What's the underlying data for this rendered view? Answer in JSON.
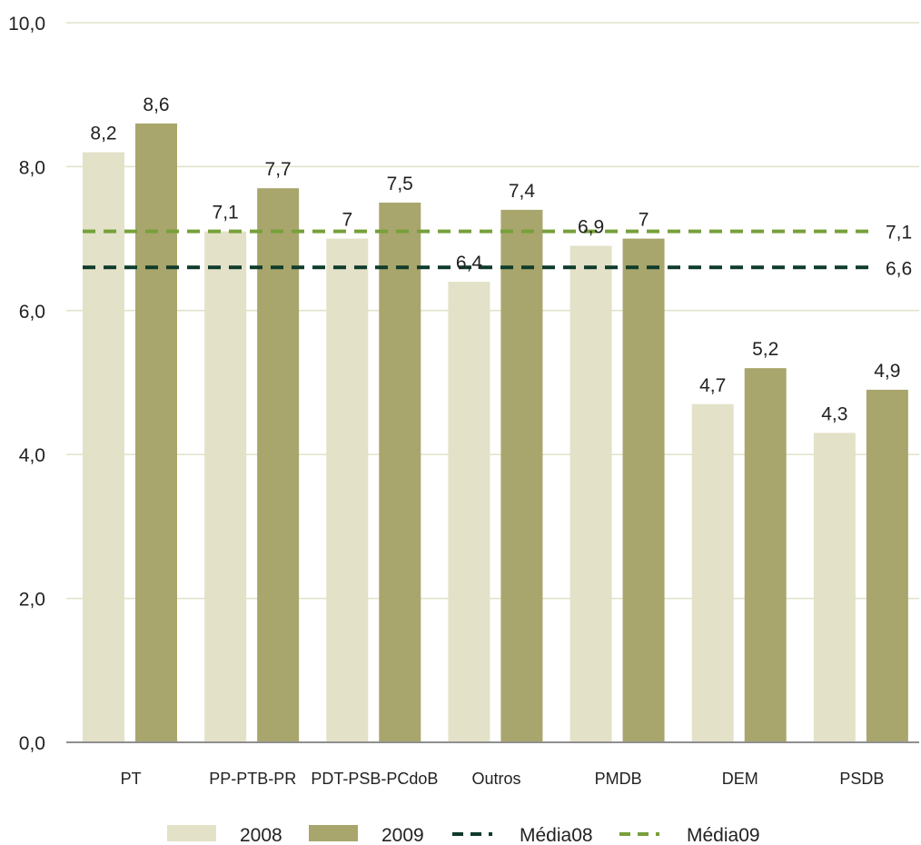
{
  "chart_data": {
    "type": "bar",
    "title": "",
    "xlabel": "",
    "ylabel": "",
    "ylim": [
      0,
      10
    ],
    "yticks": [
      "0,0",
      "2,0",
      "4,0",
      "6,0",
      "8,0",
      "10,0"
    ],
    "ytick_values": [
      0,
      2,
      4,
      6,
      8,
      10
    ],
    "grid": true,
    "legend_position": "bottom",
    "categories": [
      "PT",
      "PP-PTB-PR",
      "PDT-PSB-PCdoB",
      "Outros",
      "PMDB",
      "DEM",
      "PSDB"
    ],
    "series": [
      {
        "name": "2008",
        "color": "#e3e1c8",
        "values": [
          8.2,
          7.1,
          7.0,
          6.4,
          6.9,
          4.7,
          4.3
        ],
        "labels": [
          "8,2",
          "7,1",
          "7",
          "6,4",
          "6,9",
          "4,7",
          "4,3"
        ]
      },
      {
        "name": "2009",
        "color": "#a8a66c",
        "values": [
          8.6,
          7.7,
          7.5,
          7.4,
          7.0,
          5.2,
          4.9
        ],
        "labels": [
          "8,6",
          "7,7",
          "7,5",
          "7,4",
          "7",
          "5,2",
          "4,9"
        ]
      }
    ],
    "reference_lines": [
      {
        "name": "Média08",
        "value": 6.6,
        "label": "6,6",
        "color": "#0e3b2a",
        "style": "dashed"
      },
      {
        "name": "Média09",
        "value": 7.1,
        "label": "7,1",
        "color": "#77a03a",
        "style": "dashed"
      }
    ]
  }
}
